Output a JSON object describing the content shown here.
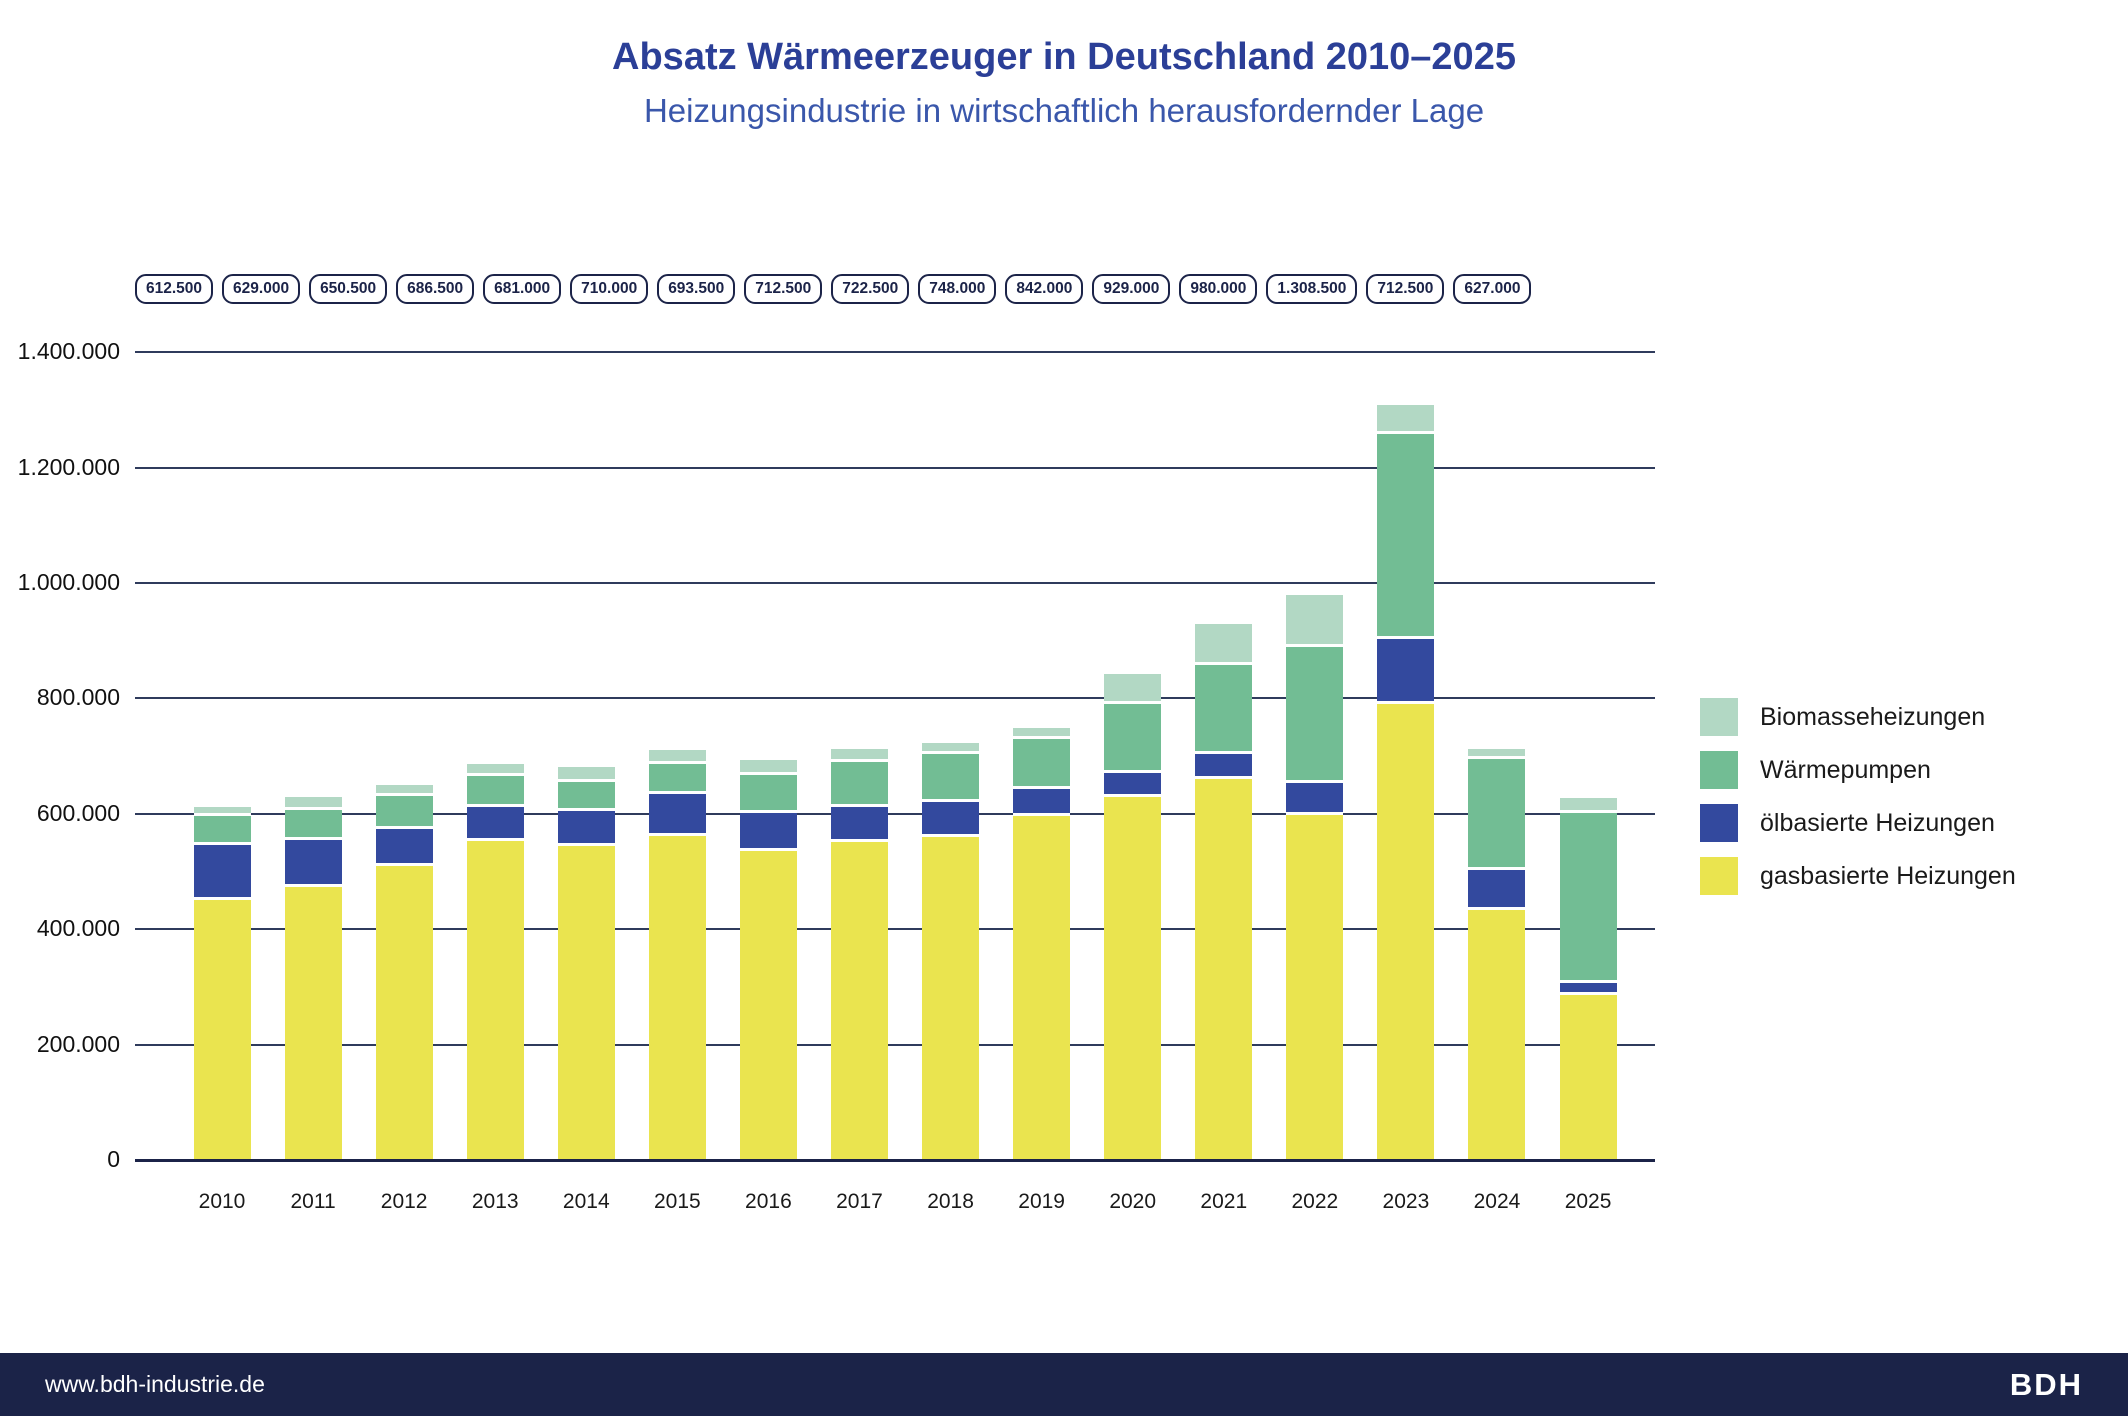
{
  "title": "Absatz Wärmeerzeuger in Deutschland 2010–2025",
  "subtitle": "Heizungsindustrie in wirtschaftlich herausfordernder Lage",
  "footer": {
    "website": "www.bdh-industrie.de",
    "logo": "BDH"
  },
  "colors": {
    "title": "#2b3f97",
    "subtitle": "#3a57ab",
    "gridline": "#2f3b5c",
    "axis": "#1b2348",
    "footer_bg": "#1b2348",
    "gas": "#eae44f",
    "oel": "#33499e",
    "waermepumpen": "#72bd94",
    "biomasse": "#b2d8c4"
  },
  "chart_data": {
    "type": "bar",
    "stacked": true,
    "grid": "horizontal",
    "legend_position": "right",
    "categories": [
      "2010",
      "2011",
      "2012",
      "2013",
      "2014",
      "2015",
      "2016",
      "2017",
      "2018",
      "2019",
      "2020",
      "2021",
      "2022",
      "2023",
      "2024",
      "2025"
    ],
    "totals": [
      612500,
      629000,
      650500,
      686500,
      681000,
      710000,
      693500,
      712500,
      722500,
      748000,
      842000,
      929000,
      980000,
      1308500,
      712500,
      627000
    ],
    "totals_formatted": [
      "612.500",
      "629.000",
      "650.500",
      "686.500",
      "681.000",
      "710.000",
      "693.500",
      "712.500",
      "722.500",
      "748.000",
      "842.000",
      "929.000",
      "980.000",
      "1.308.500",
      "712.500",
      "627.000"
    ],
    "series": [
      {
        "name": "gasbasierte Heizungen",
        "color": "#eae44f",
        "values": [
          450500,
          472500,
          510000,
          552000,
          544500,
          562000,
          536000,
          551500,
          560000,
          595500,
          629000,
          661000,
          598500,
          790500,
          432500,
          285500
        ]
      },
      {
        "name": "ölbasierte Heizungen",
        "color": "#33499e",
        "values": [
          95500,
          81500,
          64500,
          59000,
          59500,
          71500,
          65500,
          59500,
          60000,
          47500,
          41500,
          42500,
          54500,
          112000,
          69500,
          20500
        ]
      },
      {
        "name": "Wärmepumpen",
        "color": "#72bd94",
        "values": [
          50000,
          52500,
          56500,
          54000,
          50500,
          52000,
          66500,
          78000,
          84000,
          86000,
          120000,
          154000,
          236000,
          356000,
          193000,
          296000
        ]
      },
      {
        "name": "Biomasseheizungen",
        "color": "#b2d8c4",
        "values": [
          16500,
          22500,
          19500,
          21500,
          26500,
          24500,
          25500,
          23500,
          18500,
          19000,
          51500,
          71500,
          91000,
          50000,
          17500,
          25000
        ]
      }
    ],
    "legend_top_to_bottom": [
      "Biomasseheizungen",
      "Wärmepumpen",
      "ölbasierte Heizungen",
      "gasbasierte Heizungen"
    ],
    "ylim": [
      0,
      1400000
    ],
    "y_ticks": [
      "0",
      "200.000",
      "400.000",
      "600.000",
      "800.000",
      "1.000.000",
      "1.200.000",
      "1.400.000"
    ],
    "xlabel": "",
    "ylabel": ""
  }
}
